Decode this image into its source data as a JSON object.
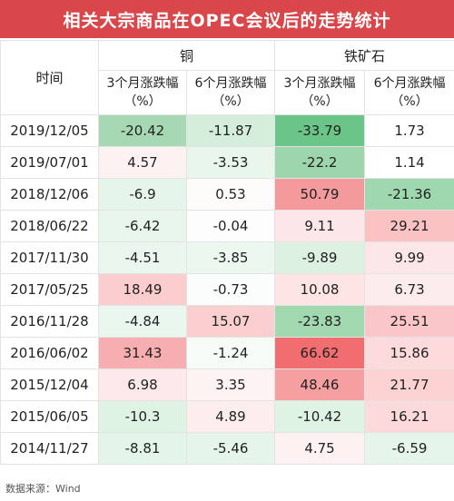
{
  "title": "相关大宗商品在OPEC会议后的走势统计",
  "header": {
    "time": "时间",
    "groups": [
      "铜",
      "铁矿石"
    ],
    "sub": [
      {
        "line1": "3个月涨跌幅",
        "line2": "（%）"
      },
      {
        "line1": "6个月涨跌幅",
        "line2": "（%）"
      },
      {
        "line1": "3个月涨跌幅",
        "line2": "（%）"
      },
      {
        "line1": "6个月涨跌幅",
        "line2": "（%）"
      }
    ]
  },
  "rows": [
    {
      "date": "2019/12/05",
      "values": [
        "-20.42",
        "-11.87",
        "-33.79",
        "1.73"
      ]
    },
    {
      "date": "2019/07/01",
      "values": [
        "4.57",
        "-3.53",
        "-22.2",
        "1.14"
      ]
    },
    {
      "date": "2018/12/06",
      "values": [
        "-6.9",
        "0.53",
        "50.79",
        "-21.36"
      ]
    },
    {
      "date": "2018/06/22",
      "values": [
        "-6.42",
        "-0.04",
        "9.11",
        "29.21"
      ]
    },
    {
      "date": "2017/11/30",
      "values": [
        "-4.51",
        "-3.85",
        "-9.89",
        "9.99"
      ]
    },
    {
      "date": "2017/05/25",
      "values": [
        "18.49",
        "-0.73",
        "10.08",
        "6.73"
      ]
    },
    {
      "date": "2016/11/28",
      "values": [
        "-4.84",
        "15.07",
        "-23.83",
        "25.51"
      ]
    },
    {
      "date": "2016/06/02",
      "values": [
        "31.43",
        "-1.24",
        "66.62",
        "15.86"
      ]
    },
    {
      "date": "2015/12/04",
      "values": [
        "6.98",
        "3.35",
        "48.46",
        "21.77"
      ]
    },
    {
      "date": "2015/06/05",
      "values": [
        "-10.3",
        "4.89",
        "-10.42",
        "16.21"
      ]
    },
    {
      "date": "2014/11/27",
      "values": [
        "-8.81",
        "-5.46",
        "4.75",
        "-6.59"
      ]
    }
  ],
  "cell_colors": [
    [
      "#a6d9b3",
      "#d4eedb",
      "#6cc588",
      "#ffffff"
    ],
    [
      "#fdf1f2",
      "#e8f6ec",
      "#9dd6ad",
      "#ffffff"
    ],
    [
      "#e6f5ea",
      "#fefbfb",
      "#f59a9c",
      "#9fd7ae"
    ],
    [
      "#e7f5eb",
      "#fdfdfd",
      "#fde6e7",
      "#fbc2c3"
    ],
    [
      "#ebf7ee",
      "#ecf7ef",
      "#dcf1e2",
      "#fde6e7"
    ],
    [
      "#fbcdce",
      "#fbfdfc",
      "#fde4e5",
      "#fdecec"
    ],
    [
      "#eaf7ee",
      "#fbcfd0",
      "#a1d8b0",
      "#fbc6c7"
    ],
    [
      "#f7aeb0",
      "#f5fbf7",
      "#f26d70",
      "#fddadb"
    ],
    [
      "#fde9ea",
      "#fdf3f3",
      "#f59fa1",
      "#fcd2d3"
    ],
    [
      "#dff3e5",
      "#fdeeee",
      "#dff3e5",
      "#fcdadb"
    ],
    [
      "#e3f4e8",
      "#e5f5e9",
      "#fdf1f1",
      "#e6f5ea"
    ]
  ],
  "watermark": "Win.d",
  "footer": "数据来源：Wind"
}
